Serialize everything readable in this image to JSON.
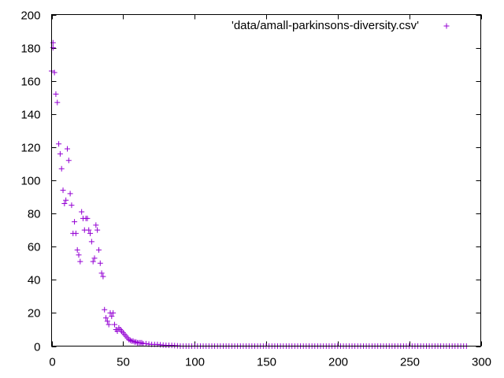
{
  "chart_data": {
    "type": "scatter",
    "title": "",
    "xlabel": "",
    "ylabel": "",
    "xlim": [
      0,
      300
    ],
    "ylim": [
      0,
      200
    ],
    "x_ticks": [
      0,
      50,
      100,
      150,
      200,
      250,
      300
    ],
    "y_ticks": [
      0,
      20,
      40,
      60,
      80,
      100,
      120,
      140,
      160,
      180,
      200
    ],
    "grid": false,
    "legend_position": "top-right",
    "marker": "plus",
    "series": [
      {
        "name": "'data/amall-parkinsons-diversity.csv'",
        "color": "#9400d3",
        "points": [
          [
            0,
            166
          ],
          [
            1,
            183
          ],
          [
            1,
            180
          ],
          [
            2,
            165
          ],
          [
            3,
            152
          ],
          [
            4,
            147
          ],
          [
            5,
            122
          ],
          [
            6,
            116
          ],
          [
            7,
            107
          ],
          [
            8,
            94
          ],
          [
            9,
            86
          ],
          [
            10,
            88
          ],
          [
            11,
            119
          ],
          [
            12,
            112
          ],
          [
            13,
            92
          ],
          [
            14,
            85
          ],
          [
            15,
            68
          ],
          [
            16,
            75
          ],
          [
            17,
            68
          ],
          [
            18,
            58
          ],
          [
            19,
            55
          ],
          [
            20,
            51
          ],
          [
            21,
            81
          ],
          [
            22,
            77
          ],
          [
            23,
            70
          ],
          [
            24,
            77
          ],
          [
            25,
            77
          ],
          [
            26,
            70
          ],
          [
            27,
            68
          ],
          [
            28,
            63
          ],
          [
            29,
            51
          ],
          [
            30,
            53
          ],
          [
            31,
            73
          ],
          [
            32,
            70
          ],
          [
            33,
            58
          ],
          [
            34,
            50
          ],
          [
            35,
            44
          ],
          [
            36,
            42
          ],
          [
            37,
            22
          ],
          [
            38,
            17
          ],
          [
            39,
            15
          ],
          [
            40,
            13
          ],
          [
            41,
            20
          ],
          [
            42,
            18
          ],
          [
            43,
            20
          ],
          [
            44,
            13
          ],
          [
            45,
            10
          ],
          [
            46,
            9
          ],
          [
            47,
            11
          ],
          [
            48,
            10
          ],
          [
            49,
            9
          ],
          [
            50,
            8
          ],
          [
            51,
            7
          ],
          [
            52,
            6
          ],
          [
            53,
            5
          ],
          [
            54,
            4
          ],
          [
            55,
            3.5
          ],
          [
            56,
            3
          ],
          [
            57,
            3
          ],
          [
            58,
            2.5
          ],
          [
            59,
            2.5
          ],
          [
            60,
            2
          ],
          [
            61,
            2
          ],
          [
            62,
            2
          ],
          [
            63,
            2
          ],
          [
            64,
            1.5
          ],
          [
            66,
            1.5
          ],
          [
            68,
            1.2
          ],
          [
            70,
            1
          ],
          [
            72,
            1
          ],
          [
            74,
            1
          ],
          [
            76,
            0.8
          ],
          [
            78,
            0.6
          ],
          [
            80,
            0.5
          ],
          [
            82,
            0.5
          ],
          [
            84,
            0.4
          ],
          [
            86,
            0.3
          ],
          [
            88,
            0.2
          ]
        ],
        "tail": {
          "x_start": 90,
          "x_end": 290,
          "step": 2,
          "y": 0
        }
      }
    ]
  }
}
